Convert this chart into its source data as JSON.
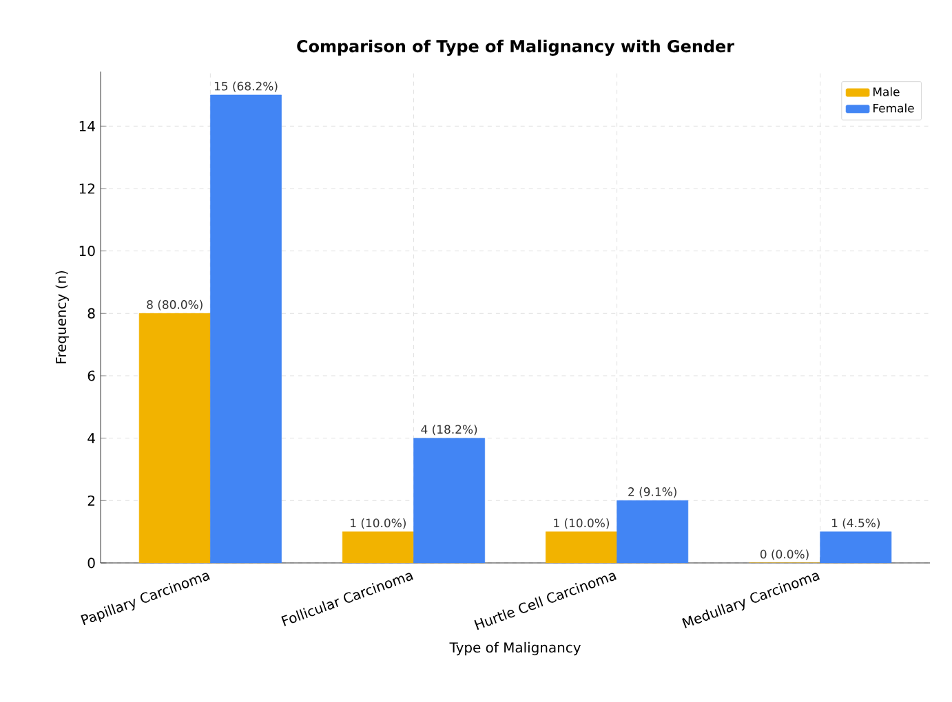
{
  "chart_data": {
    "type": "bar",
    "title": "Comparison of Type of Malignancy with Gender",
    "xlabel": "Type of Malignancy",
    "ylabel": "Frequency (n)",
    "categories": [
      "Papillary Carcinoma",
      "Follicular Carcinoma",
      "Hurtle Cell Carcinoma",
      "Medullary Carcinoma"
    ],
    "series": [
      {
        "name": "Male",
        "color": "#f2b300",
        "values": [
          8,
          1,
          1,
          0
        ],
        "value_labels": [
          "8 (80.0%)",
          "1 (10.0%)",
          "1 (10.0%)",
          "0 (0.0%)"
        ]
      },
      {
        "name": "Female",
        "color": "#4285f4",
        "values": [
          15,
          4,
          2,
          1
        ],
        "value_labels": [
          "15 (68.2%)",
          "4 (18.2%)",
          "2 (9.1%)",
          "1 (4.5%)"
        ]
      }
    ],
    "ylim": [
      0,
      15.75
    ],
    "yticks": [
      0,
      2,
      4,
      6,
      8,
      10,
      12,
      14
    ],
    "grid": true,
    "legend": "top right"
  }
}
